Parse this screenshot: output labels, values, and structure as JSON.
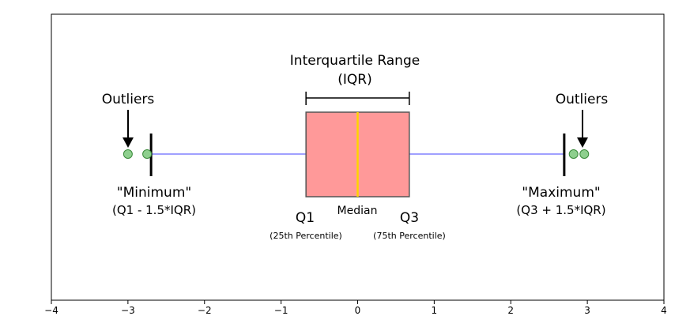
{
  "colors": {
    "box_fill": "#ff9999",
    "box_stroke": "#555555",
    "median": "#ffd400",
    "whisker": "#8080ff",
    "cap": "#000000",
    "outlier_fill": "#8ecf8e",
    "outlier_stroke": "#3a8a3a",
    "axis": "#000000",
    "background": "#ffffff"
  },
  "chart_data": {
    "type": "boxplot",
    "orientation": "horizontal",
    "xlim": [
      -4,
      4
    ],
    "x_ticks": [
      "−4",
      "−3",
      "−2",
      "−1",
      "0",
      "1",
      "2",
      "3",
      "4"
    ],
    "q1": -0.6745,
    "median": 0,
    "q3": 0.6745,
    "whisker_low": -2.698,
    "whisker_high": 2.698,
    "outliers": [
      -3.0,
      -2.75,
      2.82,
      2.96
    ]
  },
  "labels": {
    "iqr_line1": "Interquartile Range",
    "iqr_line2": "(IQR)",
    "outliers_left": "Outliers",
    "outliers_right": "Outliers",
    "minimum_line1": "\"Minimum\"",
    "minimum_line2": "(Q1 - 1.5*IQR)",
    "maximum_line1": "\"Maximum\"",
    "maximum_line2": "(Q3 + 1.5*IQR)",
    "q1": "Q1",
    "q1_sub": "(25th Percentile)",
    "median": "Median",
    "q3": "Q3",
    "q3_sub": "(75th Percentile)"
  }
}
